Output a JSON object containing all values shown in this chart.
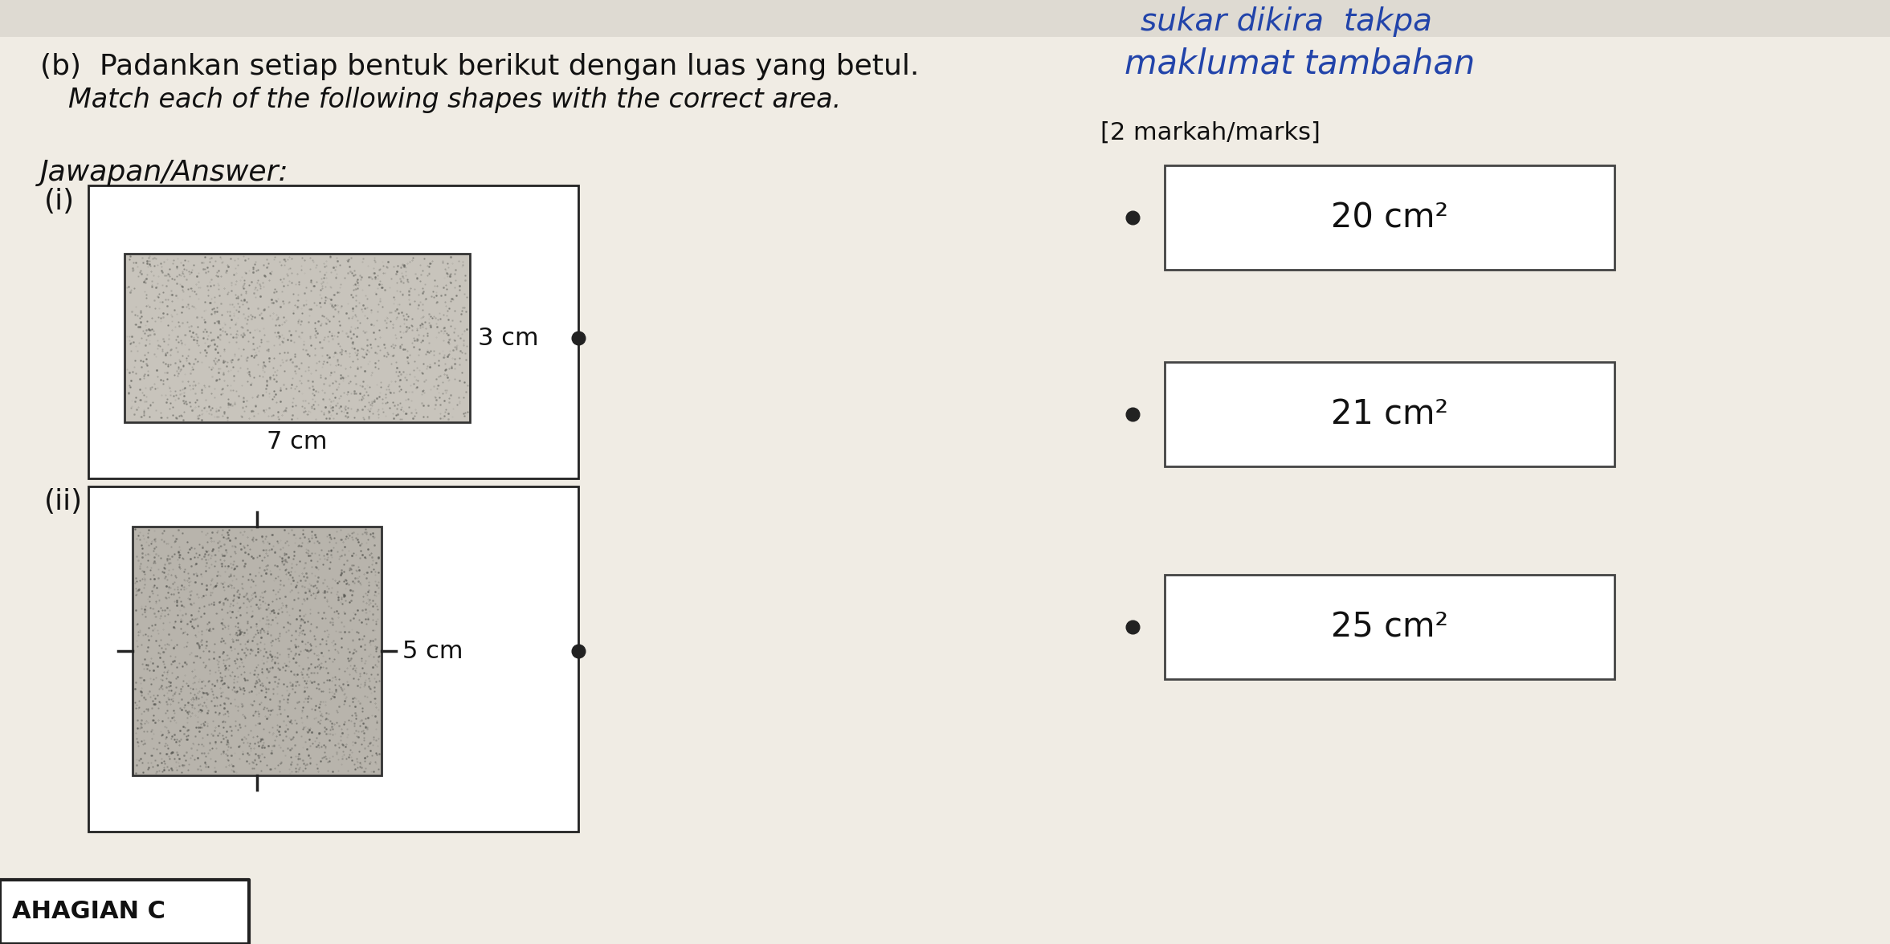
{
  "title_line1": "(b)  Padankan setiap bentuk berikut dengan luas yang betul.",
  "title_line2": "Match each of the following shapes with the correct area.",
  "marks_text": "[2 markah/marks]",
  "answer_label": "Jawapan/Answer:",
  "handwritten_line1": "sukar dikira  takpa",
  "handwritten_line2": "maklumat tambahan",
  "shape_i_label": "(i)",
  "shape_ii_label": "(ii)",
  "shape_i_dim1": "3 cm",
  "shape_i_dim2": "7 cm",
  "shape_ii_dim": "5 cm",
  "area_labels": [
    "20 cm²",
    "21 cm²",
    "25 cm²"
  ],
  "bg_color": "#d8d4cc",
  "paper_color": "#f0ece4",
  "box_color": "#ffffff",
  "shape_fill_color": "#b8b0a0",
  "outline_color": "#222222",
  "bottom_label": "AHAGIAN C",
  "fig_width": 23.53,
  "fig_height": 11.76,
  "top_bar_color": "#c8c4bc"
}
